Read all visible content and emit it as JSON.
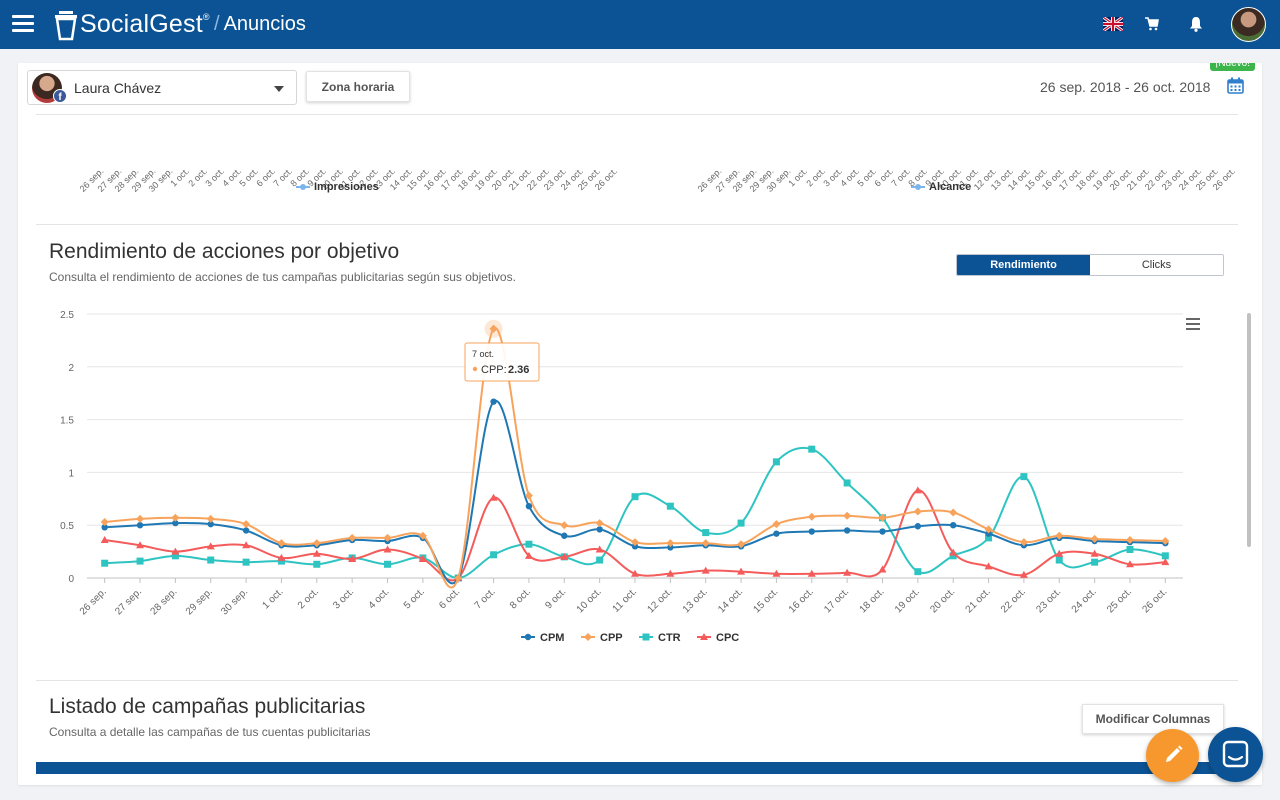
{
  "header": {
    "brand": "SocialGest",
    "brand_mark": "®",
    "section_slash": "/",
    "section": "Anuncios"
  },
  "icons": {
    "menu": "hamburger-icon",
    "logo": "socialgest-logo-icon",
    "language": "uk-flag-icon",
    "cart": "cart-icon",
    "notifications": "bell-icon",
    "calendar": "calendar-icon",
    "chart_menu": "chart-menu-icon",
    "edit": "pencil-icon",
    "chat": "chat-icon"
  },
  "toolbar": {
    "account_name": "Laura Chávez",
    "timezone_button": "Zona horaria",
    "new_badge": "¡Nuevo!",
    "date_range": "26 sep. 2018 - 26 oct. 2018"
  },
  "mini_charts": {
    "ticks": [
      "26 sep.",
      "27 sep.",
      "28 sep.",
      "29 sep.",
      "30 sep.",
      "1 oct.",
      "2 oct.",
      "3 oct.",
      "4 oct.",
      "5 oct.",
      "6 oct.",
      "7 oct.",
      "8 oct.",
      "9 oct.",
      "10 oct.",
      "11 oct.",
      "12 oct.",
      "13 oct.",
      "14 oct.",
      "15 oct.",
      "16 oct.",
      "17 oct.",
      "18 oct.",
      "19 oct.",
      "20 oct.",
      "21 oct.",
      "22 oct.",
      "23 oct.",
      "24 oct.",
      "25 oct.",
      "26 oct."
    ],
    "left_legend": "Impresiones",
    "right_legend": "Alcance"
  },
  "performance": {
    "title": "Rendimiento de acciones por objetivo",
    "subtitle": "Consulta el rendimiento de acciones de tus campañas publicitarias según sus objetivos.",
    "tab_active": "Rendimiento",
    "tab_other": "Clicks"
  },
  "tooltip": {
    "date": "7 oct.",
    "series": "CPP",
    "value": "2.36"
  },
  "listing": {
    "title": "Listado de campañas publicitarias",
    "subtitle": "Consulta a detalle las campañas de tus cuentas publicitarias",
    "modify_columns": "Modificar Columnas"
  },
  "chart_data": {
    "type": "line",
    "categories": [
      "26 sep.",
      "27 sep.",
      "28 sep.",
      "29 sep.",
      "30 sep.",
      "1 oct.",
      "2 oct.",
      "3 oct.",
      "4 oct.",
      "5 oct.",
      "6 oct.",
      "7 oct.",
      "8 oct.",
      "9 oct.",
      "10 oct.",
      "11 oct.",
      "12 oct.",
      "13 oct.",
      "14 oct.",
      "15 oct.",
      "16 oct.",
      "17 oct.",
      "18 oct.",
      "19 oct.",
      "20 oct.",
      "21 oct.",
      "22 oct.",
      "23 oct.",
      "24 oct.",
      "25 oct.",
      "26 oct."
    ],
    "ylim": [
      0,
      2.5
    ],
    "yticks": [
      "0",
      "0.5",
      "1",
      "1.5",
      "2",
      "2.5"
    ],
    "grid": true,
    "legend": "bottom-center",
    "series": [
      {
        "name": "CPM",
        "color": "#1f78b4",
        "marker": "circle",
        "values": [
          0.48,
          0.5,
          0.52,
          0.51,
          0.45,
          0.31,
          0.31,
          0.36,
          0.35,
          0.38,
          0.0,
          1.67,
          0.68,
          0.4,
          0.46,
          0.3,
          0.29,
          0.31,
          0.3,
          0.42,
          0.44,
          0.45,
          0.44,
          0.49,
          0.5,
          0.42,
          0.31,
          0.38,
          0.35,
          0.34,
          0.33
        ]
      },
      {
        "name": "CPP",
        "color": "#f7a35c",
        "marker": "diamond",
        "values": [
          0.53,
          0.56,
          0.57,
          0.56,
          0.51,
          0.33,
          0.33,
          0.38,
          0.38,
          0.4,
          0.0,
          2.36,
          0.78,
          0.5,
          0.52,
          0.34,
          0.33,
          0.33,
          0.32,
          0.51,
          0.58,
          0.59,
          0.57,
          0.63,
          0.62,
          0.46,
          0.34,
          0.4,
          0.37,
          0.36,
          0.35
        ]
      },
      {
        "name": "CTR",
        "color": "#2ec4c1",
        "marker": "square",
        "values": [
          0.14,
          0.16,
          0.21,
          0.17,
          0.15,
          0.16,
          0.13,
          0.19,
          0.13,
          0.19,
          0.0,
          0.22,
          0.32,
          0.2,
          0.17,
          0.77,
          0.68,
          0.43,
          0.52,
          1.1,
          1.22,
          0.9,
          0.57,
          0.06,
          0.21,
          0.38,
          0.96,
          0.17,
          0.15,
          0.27,
          0.21
        ]
      },
      {
        "name": "CPC",
        "color": "#f45b5b",
        "marker": "triangle",
        "values": [
          0.36,
          0.31,
          0.25,
          0.3,
          0.31,
          0.19,
          0.23,
          0.18,
          0.27,
          0.18,
          0.0,
          0.76,
          0.21,
          0.2,
          0.27,
          0.04,
          0.04,
          0.07,
          0.06,
          0.04,
          0.04,
          0.05,
          0.08,
          0.83,
          0.24,
          0.11,
          0.03,
          0.23,
          0.23,
          0.13,
          0.15
        ]
      }
    ]
  }
}
